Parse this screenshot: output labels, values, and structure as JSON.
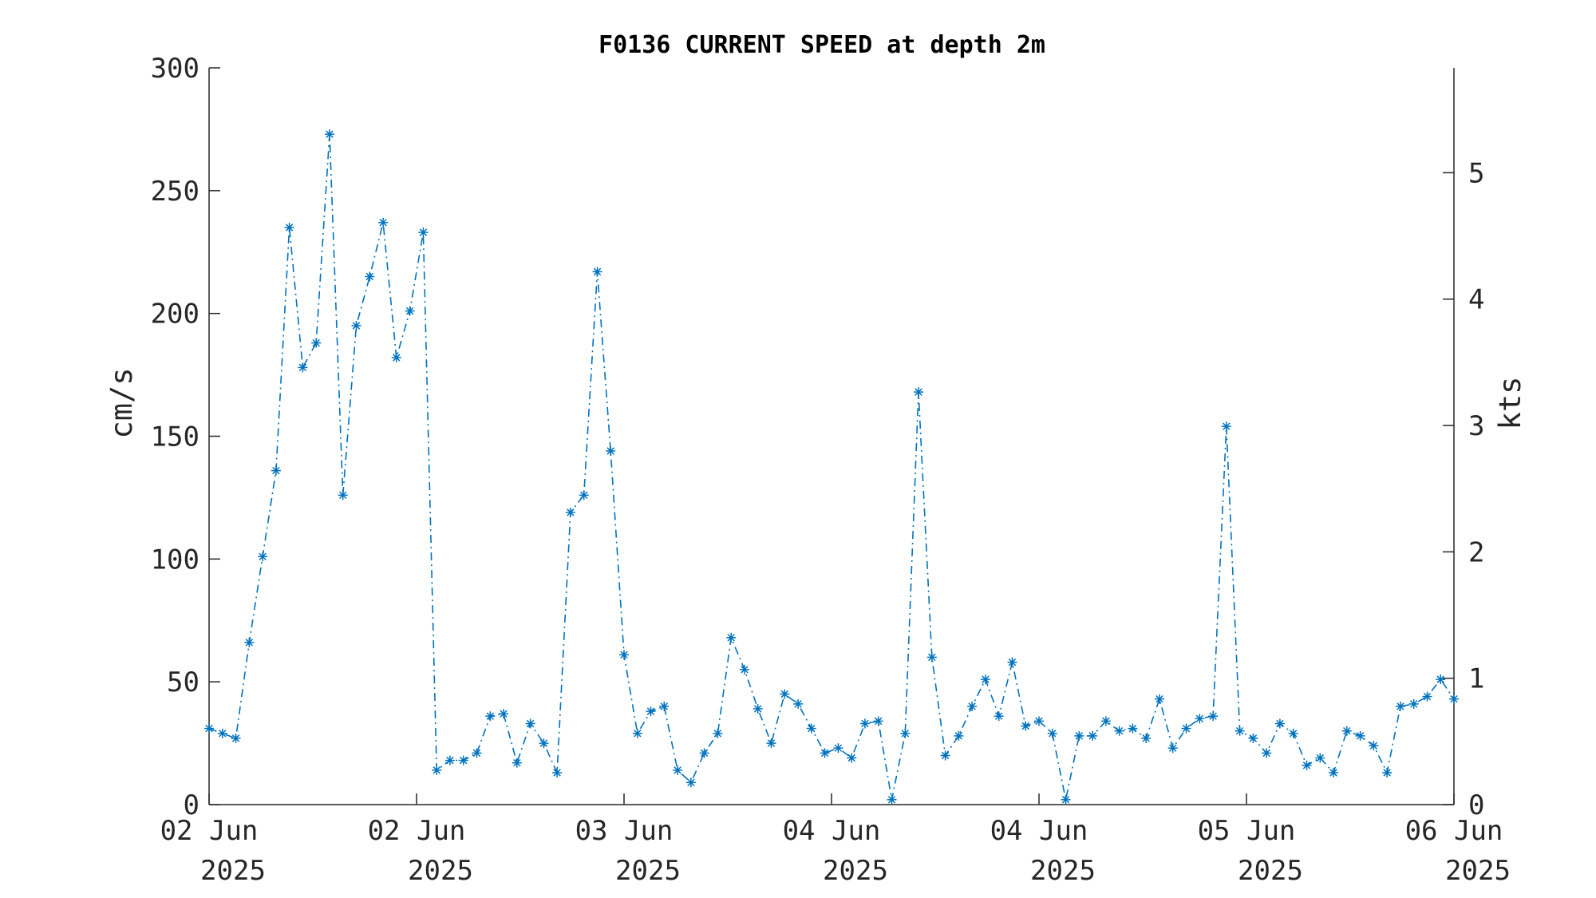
{
  "chart_data": {
    "type": "line",
    "title": "F0136 CURRENT SPEED at depth 2m",
    "ylabel": "cm/s",
    "ylabel_right": "kts",
    "ylim": [
      0,
      300
    ],
    "y_ticks": [
      "0",
      "50",
      "100",
      "150",
      "200",
      "250",
      "300"
    ],
    "right_ylim_kts": [
      0,
      5.83
    ],
    "right_ticks": [
      "0",
      "1",
      "2",
      "3",
      "4",
      "5"
    ],
    "xlim_hours": [
      0,
      96
    ],
    "x_ticks": [
      {
        "day": "02 Jun",
        "year": "2025"
      },
      {
        "day": "02 Jun",
        "year": "2025"
      },
      {
        "day": "03 Jun",
        "year": "2025"
      },
      {
        "day": "04 Jun",
        "year": "2025"
      },
      {
        "day": "04 Jun",
        "year": "2025"
      },
      {
        "day": "05 Jun",
        "year": "2025"
      },
      {
        "day": "06 Jun",
        "year": "2025"
      }
    ],
    "grid": false,
    "line_style": "dash-dot",
    "marker": "asterisk",
    "color": "#0072BD",
    "series": [
      {
        "values": [
          31,
          29,
          27,
          66,
          101,
          136,
          235,
          178,
          188,
          273,
          126,
          195,
          215,
          237,
          182,
          201,
          233,
          14,
          18,
          18,
          21,
          36,
          37,
          17,
          33,
          25,
          13,
          119,
          126,
          217,
          144,
          61,
          29,
          38,
          40,
          14,
          9,
          21,
          29,
          68,
          55,
          39,
          25,
          45,
          41,
          31,
          21,
          23,
          19,
          33,
          34,
          2,
          29,
          168,
          60,
          20,
          28,
          40,
          51,
          36,
          58,
          32,
          34,
          29,
          2,
          28,
          28,
          34,
          30,
          31,
          27,
          43,
          23,
          31,
          35,
          36,
          154,
          30,
          27,
          21,
          33,
          29,
          16,
          19,
          13,
          30,
          28,
          24,
          13,
          40,
          41,
          44,
          51,
          43
        ]
      }
    ]
  }
}
